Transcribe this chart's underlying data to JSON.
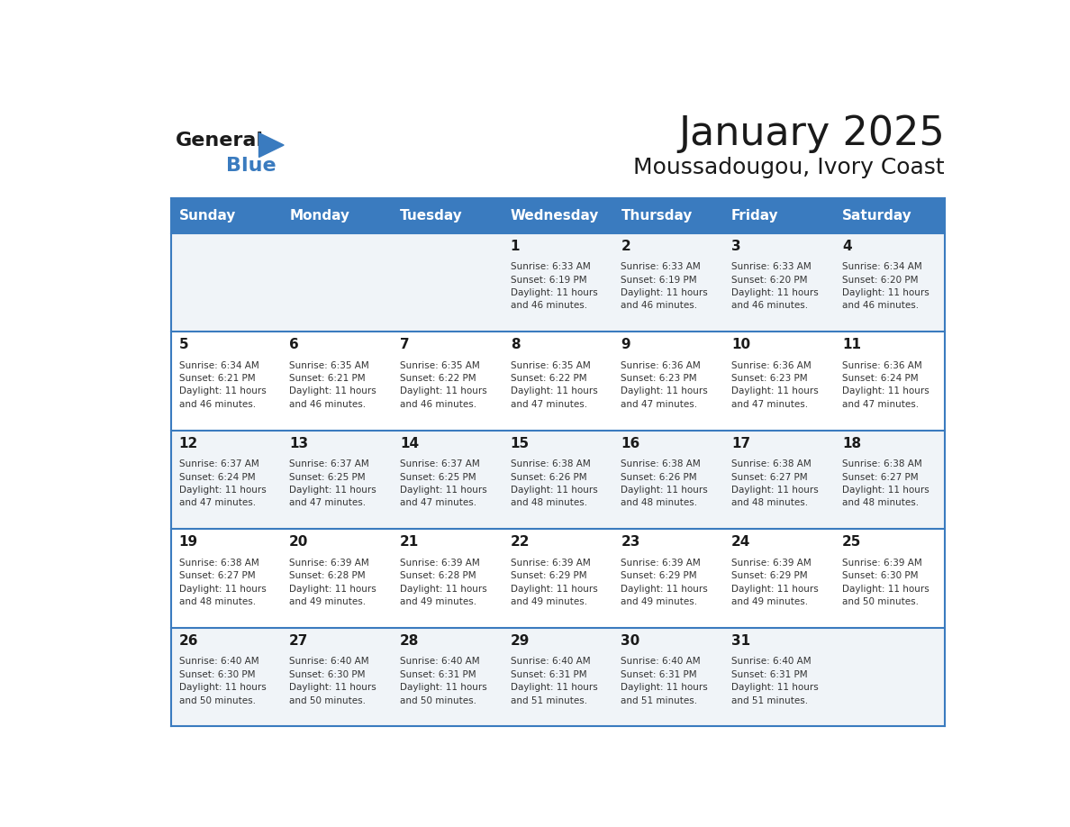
{
  "title": "January 2025",
  "subtitle": "Moussadougou, Ivory Coast",
  "header_bg": "#3a7bbf",
  "header_text": "#ffffff",
  "row_bg_odd": "#f0f4f8",
  "row_bg_even": "#ffffff",
  "separator_color": "#3a7bbf",
  "days_of_week": [
    "Sunday",
    "Monday",
    "Tuesday",
    "Wednesday",
    "Thursday",
    "Friday",
    "Saturday"
  ],
  "logo_general_color": "#1a1a1a",
  "logo_blue_color": "#3a7bbf",
  "calendar_data": [
    [
      {
        "day": null,
        "info": null
      },
      {
        "day": null,
        "info": null
      },
      {
        "day": null,
        "info": null
      },
      {
        "day": "1",
        "info": "Sunrise: 6:33 AM\nSunset: 6:19 PM\nDaylight: 11 hours\nand 46 minutes."
      },
      {
        "day": "2",
        "info": "Sunrise: 6:33 AM\nSunset: 6:19 PM\nDaylight: 11 hours\nand 46 minutes."
      },
      {
        "day": "3",
        "info": "Sunrise: 6:33 AM\nSunset: 6:20 PM\nDaylight: 11 hours\nand 46 minutes."
      },
      {
        "day": "4",
        "info": "Sunrise: 6:34 AM\nSunset: 6:20 PM\nDaylight: 11 hours\nand 46 minutes."
      }
    ],
    [
      {
        "day": "5",
        "info": "Sunrise: 6:34 AM\nSunset: 6:21 PM\nDaylight: 11 hours\nand 46 minutes."
      },
      {
        "day": "6",
        "info": "Sunrise: 6:35 AM\nSunset: 6:21 PM\nDaylight: 11 hours\nand 46 minutes."
      },
      {
        "day": "7",
        "info": "Sunrise: 6:35 AM\nSunset: 6:22 PM\nDaylight: 11 hours\nand 46 minutes."
      },
      {
        "day": "8",
        "info": "Sunrise: 6:35 AM\nSunset: 6:22 PM\nDaylight: 11 hours\nand 47 minutes."
      },
      {
        "day": "9",
        "info": "Sunrise: 6:36 AM\nSunset: 6:23 PM\nDaylight: 11 hours\nand 47 minutes."
      },
      {
        "day": "10",
        "info": "Sunrise: 6:36 AM\nSunset: 6:23 PM\nDaylight: 11 hours\nand 47 minutes."
      },
      {
        "day": "11",
        "info": "Sunrise: 6:36 AM\nSunset: 6:24 PM\nDaylight: 11 hours\nand 47 minutes."
      }
    ],
    [
      {
        "day": "12",
        "info": "Sunrise: 6:37 AM\nSunset: 6:24 PM\nDaylight: 11 hours\nand 47 minutes."
      },
      {
        "day": "13",
        "info": "Sunrise: 6:37 AM\nSunset: 6:25 PM\nDaylight: 11 hours\nand 47 minutes."
      },
      {
        "day": "14",
        "info": "Sunrise: 6:37 AM\nSunset: 6:25 PM\nDaylight: 11 hours\nand 47 minutes."
      },
      {
        "day": "15",
        "info": "Sunrise: 6:38 AM\nSunset: 6:26 PM\nDaylight: 11 hours\nand 48 minutes."
      },
      {
        "day": "16",
        "info": "Sunrise: 6:38 AM\nSunset: 6:26 PM\nDaylight: 11 hours\nand 48 minutes."
      },
      {
        "day": "17",
        "info": "Sunrise: 6:38 AM\nSunset: 6:27 PM\nDaylight: 11 hours\nand 48 minutes."
      },
      {
        "day": "18",
        "info": "Sunrise: 6:38 AM\nSunset: 6:27 PM\nDaylight: 11 hours\nand 48 minutes."
      }
    ],
    [
      {
        "day": "19",
        "info": "Sunrise: 6:38 AM\nSunset: 6:27 PM\nDaylight: 11 hours\nand 48 minutes."
      },
      {
        "day": "20",
        "info": "Sunrise: 6:39 AM\nSunset: 6:28 PM\nDaylight: 11 hours\nand 49 minutes."
      },
      {
        "day": "21",
        "info": "Sunrise: 6:39 AM\nSunset: 6:28 PM\nDaylight: 11 hours\nand 49 minutes."
      },
      {
        "day": "22",
        "info": "Sunrise: 6:39 AM\nSunset: 6:29 PM\nDaylight: 11 hours\nand 49 minutes."
      },
      {
        "day": "23",
        "info": "Sunrise: 6:39 AM\nSunset: 6:29 PM\nDaylight: 11 hours\nand 49 minutes."
      },
      {
        "day": "24",
        "info": "Sunrise: 6:39 AM\nSunset: 6:29 PM\nDaylight: 11 hours\nand 49 minutes."
      },
      {
        "day": "25",
        "info": "Sunrise: 6:39 AM\nSunset: 6:30 PM\nDaylight: 11 hours\nand 50 minutes."
      }
    ],
    [
      {
        "day": "26",
        "info": "Sunrise: 6:40 AM\nSunset: 6:30 PM\nDaylight: 11 hours\nand 50 minutes."
      },
      {
        "day": "27",
        "info": "Sunrise: 6:40 AM\nSunset: 6:30 PM\nDaylight: 11 hours\nand 50 minutes."
      },
      {
        "day": "28",
        "info": "Sunrise: 6:40 AM\nSunset: 6:31 PM\nDaylight: 11 hours\nand 50 minutes."
      },
      {
        "day": "29",
        "info": "Sunrise: 6:40 AM\nSunset: 6:31 PM\nDaylight: 11 hours\nand 51 minutes."
      },
      {
        "day": "30",
        "info": "Sunrise: 6:40 AM\nSunset: 6:31 PM\nDaylight: 11 hours\nand 51 minutes."
      },
      {
        "day": "31",
        "info": "Sunrise: 6:40 AM\nSunset: 6:31 PM\nDaylight: 11 hours\nand 51 minutes."
      },
      {
        "day": null,
        "info": null
      }
    ]
  ]
}
